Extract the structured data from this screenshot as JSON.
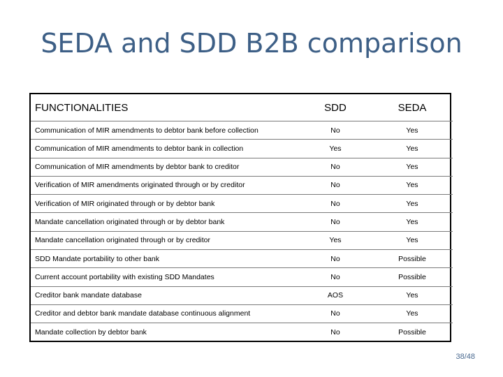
{
  "title": "SEDA and SDD B2B comparison",
  "table": {
    "headers": [
      "FUNCTIONALITIES",
      "SDD",
      "SEDA"
    ],
    "rows": [
      [
        "Communication of MIR amendments to debtor bank before collection",
        "No",
        "Yes"
      ],
      [
        "Communication of MIR amendments to debtor bank in collection",
        "Yes",
        "Yes"
      ],
      [
        "Communication of MIR amendments by debtor bank to creditor",
        "No",
        "Yes"
      ],
      [
        "Verification of MIR amendments originated through or by creditor",
        "No",
        "Yes"
      ],
      [
        "Verification of MIR originated through or by debtor bank",
        "No",
        "Yes"
      ],
      [
        "Mandate cancellation originated through or by debtor bank",
        "No",
        "Yes"
      ],
      [
        "Mandate cancellation originated through or by creditor",
        "Yes",
        "Yes"
      ],
      [
        "SDD Mandate portability to other bank",
        "No",
        "Possible"
      ],
      [
        "Current account portability with existing SDD Mandates",
        "No",
        "Possible"
      ],
      [
        "Creditor bank mandate database",
        "AOS",
        "Yes"
      ],
      [
        "Creditor and debtor bank mandate database continuous alignment",
        "No",
        "Yes"
      ],
      [
        "Mandate collection by debtor bank",
        "No",
        "Possible"
      ]
    ]
  },
  "page_number": "38/48"
}
